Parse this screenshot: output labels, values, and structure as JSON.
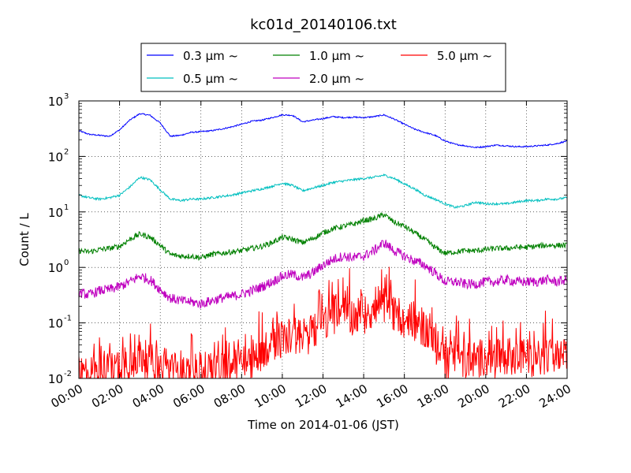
{
  "chart_data": {
    "type": "line",
    "title": "kc01d_20140106.txt",
    "xlabel": "Time on 2014-01-06 (JST)",
    "ylabel": "Count / L",
    "yscale": "log",
    "ylim": [
      0.01,
      1000
    ],
    "xlim": [
      0,
      24
    ],
    "x_ticks": [
      "00:00",
      "02:00",
      "04:00",
      "06:00",
      "08:00",
      "10:00",
      "12:00",
      "14:00",
      "16:00",
      "18:00",
      "20:00",
      "22:00",
      "24:00"
    ],
    "y_ticks": [
      {
        "base": "10",
        "exp": "-2"
      },
      {
        "base": "10",
        "exp": "-1"
      },
      {
        "base": "10",
        "exp": "0"
      },
      {
        "base": "10",
        "exp": "1"
      },
      {
        "base": "10",
        "exp": "2"
      },
      {
        "base": "10",
        "exp": "3"
      }
    ],
    "grid": true,
    "legend_position": "top-center",
    "series": [
      {
        "name": "0.3 μm ~",
        "color": "#0000ff",
        "x": [
          0,
          0.5,
          1,
          1.5,
          2,
          2.5,
          3,
          3.5,
          4,
          4.5,
          5,
          5.5,
          6,
          6.5,
          7,
          7.5,
          8,
          8.5,
          9,
          9.5,
          10,
          10.5,
          11,
          11.5,
          12,
          12.5,
          13,
          13.5,
          14,
          14.5,
          15,
          15.5,
          16,
          16.5,
          17,
          17.5,
          18,
          18.5,
          19,
          19.5,
          20,
          20.5,
          21,
          21.5,
          22,
          22.5,
          23,
          23.5,
          24
        ],
        "values": [
          290,
          250,
          240,
          230,
          300,
          450,
          590,
          550,
          400,
          230,
          240,
          270,
          280,
          290,
          310,
          340,
          380,
          430,
          450,
          500,
          560,
          550,
          420,
          450,
          480,
          520,
          500,
          510,
          500,
          520,
          560,
          470,
          380,
          310,
          270,
          240,
          190,
          165,
          155,
          145,
          150,
          160,
          155,
          150,
          150,
          155,
          160,
          170,
          190
        ]
      },
      {
        "name": "0.5 μm ~",
        "color": "#00bfbf",
        "x": [
          0,
          0.5,
          1,
          1.5,
          2,
          2.5,
          3,
          3.5,
          4,
          4.5,
          5,
          5.5,
          6,
          6.5,
          7,
          7.5,
          8,
          8.5,
          9,
          9.5,
          10,
          10.5,
          11,
          11.5,
          12,
          12.5,
          13,
          13.5,
          14,
          14.5,
          15,
          15.5,
          16,
          16.5,
          17,
          17.5,
          18,
          18.5,
          19,
          19.5,
          20,
          20.5,
          21,
          21.5,
          22,
          22.5,
          23,
          23.5,
          24
        ],
        "values": [
          20,
          18,
          17,
          18,
          20,
          28,
          42,
          38,
          25,
          17,
          16,
          17,
          17,
          18,
          19,
          20,
          22,
          24,
          26,
          29,
          33,
          30,
          24,
          27,
          30,
          34,
          36,
          38,
          40,
          42,
          46,
          40,
          32,
          26,
          20,
          17,
          14,
          12,
          13,
          15,
          14,
          14,
          14,
          15,
          16,
          16,
          17,
          17,
          18
        ]
      },
      {
        "name": "1.0 μm ~",
        "color": "#008000",
        "x": [
          0,
          0.5,
          1,
          1.5,
          2,
          2.5,
          3,
          3.5,
          4,
          4.5,
          5,
          5.5,
          6,
          6.5,
          7,
          7.5,
          8,
          8.5,
          9,
          9.5,
          10,
          10.5,
          11,
          11.5,
          12,
          12.5,
          13,
          13.5,
          14,
          14.5,
          15,
          15.5,
          16,
          16.5,
          17,
          17.5,
          18,
          18.5,
          19,
          19.5,
          20,
          20.5,
          21,
          21.5,
          22,
          22.5,
          23,
          23.5,
          24
        ],
        "values": [
          2.0,
          1.9,
          2.1,
          2.2,
          2.4,
          3.2,
          4.0,
          3.5,
          2.5,
          1.7,
          1.6,
          1.6,
          1.5,
          1.7,
          1.8,
          1.9,
          2.0,
          2.2,
          2.4,
          2.8,
          3.5,
          3.2,
          2.8,
          3.3,
          4.2,
          5.0,
          5.5,
          6.0,
          7.0,
          7.5,
          9.0,
          6.5,
          5.5,
          4.2,
          3.2,
          2.3,
          1.8,
          1.9,
          2.0,
          2.0,
          2.1,
          2.2,
          2.2,
          2.3,
          2.3,
          2.4,
          2.5,
          2.5,
          2.5
        ]
      },
      {
        "name": "2.0 μm ~",
        "color": "#bf00bf",
        "x": [
          0,
          0.5,
          1,
          1.5,
          2,
          2.5,
          3,
          3.5,
          4,
          4.5,
          5,
          5.5,
          6,
          6.5,
          7,
          7.5,
          8,
          8.5,
          9,
          9.5,
          10,
          10.5,
          11,
          11.5,
          12,
          12.5,
          13,
          13.5,
          14,
          14.5,
          15,
          15.5,
          16,
          16.5,
          17,
          17.5,
          18,
          18.5,
          19,
          19.5,
          20,
          20.5,
          21,
          21.5,
          22,
          22.5,
          23,
          23.5,
          24
        ],
        "values": [
          0.35,
          0.32,
          0.38,
          0.4,
          0.45,
          0.55,
          0.7,
          0.6,
          0.4,
          0.28,
          0.25,
          0.24,
          0.22,
          0.25,
          0.28,
          0.3,
          0.33,
          0.38,
          0.45,
          0.55,
          0.7,
          0.75,
          0.65,
          0.8,
          1.1,
          1.4,
          1.6,
          1.5,
          1.6,
          2.0,
          2.8,
          2.0,
          1.6,
          1.3,
          1.1,
          0.8,
          0.55,
          0.55,
          0.5,
          0.5,
          0.55,
          0.55,
          0.6,
          0.55,
          0.55,
          0.55,
          0.6,
          0.55,
          0.6
        ]
      },
      {
        "name": "5.0 μm ~",
        "color": "#ff0000",
        "x": [
          0,
          0.5,
          1,
          1.5,
          2,
          2.5,
          3,
          3.5,
          4,
          4.5,
          5,
          5.5,
          6,
          6.5,
          7,
          7.5,
          8,
          8.5,
          9,
          9.5,
          10,
          10.5,
          11,
          11.5,
          12,
          12.5,
          13,
          13.5,
          14,
          14.5,
          15,
          15.5,
          16,
          16.5,
          17,
          17.5,
          18,
          18.5,
          19,
          19.5,
          20,
          20.5,
          21,
          21.5,
          22,
          22.5,
          23,
          23.5,
          24
        ],
        "values": [
          0.013,
          0.012,
          0.012,
          0.013,
          0.018,
          0.02,
          0.025,
          0.02,
          0.015,
          0.013,
          0.015,
          0.012,
          0.013,
          0.012,
          0.015,
          0.015,
          0.018,
          0.02,
          0.03,
          0.045,
          0.05,
          0.06,
          0.05,
          0.07,
          0.1,
          0.13,
          0.15,
          0.13,
          0.14,
          0.16,
          0.2,
          0.15,
          0.12,
          0.1,
          0.08,
          0.04,
          0.02,
          0.025,
          0.02,
          0.022,
          0.025,
          0.022,
          0.025,
          0.02,
          0.025,
          0.022,
          0.025,
          0.022,
          0.025
        ]
      }
    ]
  }
}
